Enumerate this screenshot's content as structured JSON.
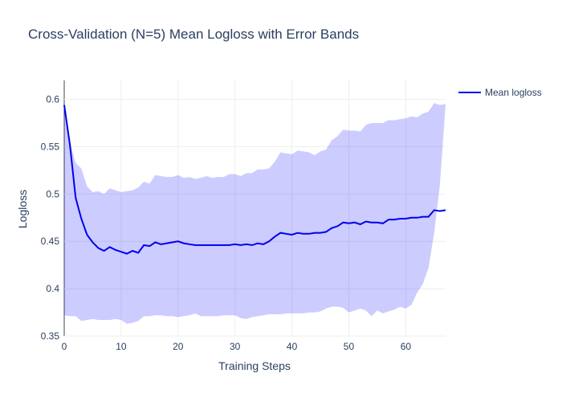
{
  "chart_data": {
    "type": "line",
    "title": "Cross-Validation (N=5) Mean Logloss with Error Bands",
    "xlabel": "Training Steps",
    "ylabel": "Logloss",
    "xlim": [
      0,
      67
    ],
    "ylim": [
      0.35,
      0.62
    ],
    "xticks": [
      0,
      10,
      20,
      30,
      40,
      50,
      60
    ],
    "yticks": [
      0.35,
      0.4,
      0.45,
      0.5,
      0.55,
      0.6
    ],
    "grid": true,
    "legend_position": "top-right",
    "colors": {
      "line": "#0000ee",
      "band": "rgba(0,0,255,0.2)"
    },
    "series": [
      {
        "name": "Mean logloss",
        "x": [
          0,
          1,
          2,
          3,
          4,
          5,
          6,
          7,
          8,
          9,
          10,
          11,
          12,
          13,
          14,
          15,
          16,
          17,
          18,
          19,
          20,
          21,
          22,
          23,
          24,
          25,
          26,
          27,
          28,
          29,
          30,
          31,
          32,
          33,
          34,
          35,
          36,
          37,
          38,
          39,
          40,
          41,
          42,
          43,
          44,
          45,
          46,
          47,
          48,
          49,
          50,
          51,
          52,
          53,
          54,
          55,
          56,
          57,
          58,
          59,
          60,
          61,
          62,
          63,
          64,
          65,
          66,
          67
        ],
        "y": [
          0.594,
          0.552,
          0.496,
          0.474,
          0.457,
          0.449,
          0.443,
          0.44,
          0.444,
          0.441,
          0.439,
          0.437,
          0.44,
          0.438,
          0.446,
          0.445,
          0.449,
          0.447,
          0.448,
          0.449,
          0.45,
          0.448,
          0.447,
          0.446,
          0.446,
          0.446,
          0.446,
          0.446,
          0.446,
          0.446,
          0.447,
          0.446,
          0.447,
          0.446,
          0.448,
          0.447,
          0.45,
          0.455,
          0.459,
          0.458,
          0.457,
          0.459,
          0.458,
          0.458,
          0.459,
          0.459,
          0.46,
          0.464,
          0.466,
          0.47,
          0.469,
          0.47,
          0.468,
          0.471,
          0.47,
          0.47,
          0.469,
          0.473,
          0.473,
          0.474,
          0.474,
          0.475,
          0.475,
          0.476,
          0.476,
          0.483,
          0.482,
          0.483
        ],
        "upper": [
          0.594,
          0.555,
          0.533,
          0.527,
          0.508,
          0.502,
          0.503,
          0.5,
          0.506,
          0.504,
          0.502,
          0.503,
          0.504,
          0.507,
          0.513,
          0.511,
          0.52,
          0.519,
          0.518,
          0.518,
          0.52,
          0.517,
          0.518,
          0.516,
          0.517,
          0.519,
          0.517,
          0.518,
          0.518,
          0.521,
          0.521,
          0.519,
          0.522,
          0.522,
          0.526,
          0.526,
          0.527,
          0.534,
          0.544,
          0.543,
          0.542,
          0.546,
          0.545,
          0.544,
          0.541,
          0.545,
          0.547,
          0.557,
          0.561,
          0.568,
          0.567,
          0.567,
          0.566,
          0.573,
          0.575,
          0.575,
          0.575,
          0.578,
          0.578,
          0.579,
          0.58,
          0.582,
          0.581,
          0.585,
          0.587,
          0.596,
          0.594,
          0.595
        ],
        "lower": [
          0.372,
          0.371,
          0.371,
          0.366,
          0.367,
          0.368,
          0.367,
          0.367,
          0.367,
          0.368,
          0.367,
          0.363,
          0.364,
          0.366,
          0.371,
          0.371,
          0.372,
          0.372,
          0.371,
          0.371,
          0.37,
          0.371,
          0.372,
          0.374,
          0.371,
          0.371,
          0.371,
          0.371,
          0.372,
          0.372,
          0.372,
          0.369,
          0.368,
          0.37,
          0.371,
          0.372,
          0.373,
          0.373,
          0.373,
          0.374,
          0.374,
          0.374,
          0.374,
          0.375,
          0.375,
          0.376,
          0.379,
          0.381,
          0.381,
          0.38,
          0.375,
          0.377,
          0.379,
          0.377,
          0.371,
          0.377,
          0.374,
          0.376,
          0.378,
          0.381,
          0.379,
          0.383,
          0.396,
          0.405,
          0.422,
          0.459,
          0.51,
          0.595
        ]
      }
    ]
  }
}
